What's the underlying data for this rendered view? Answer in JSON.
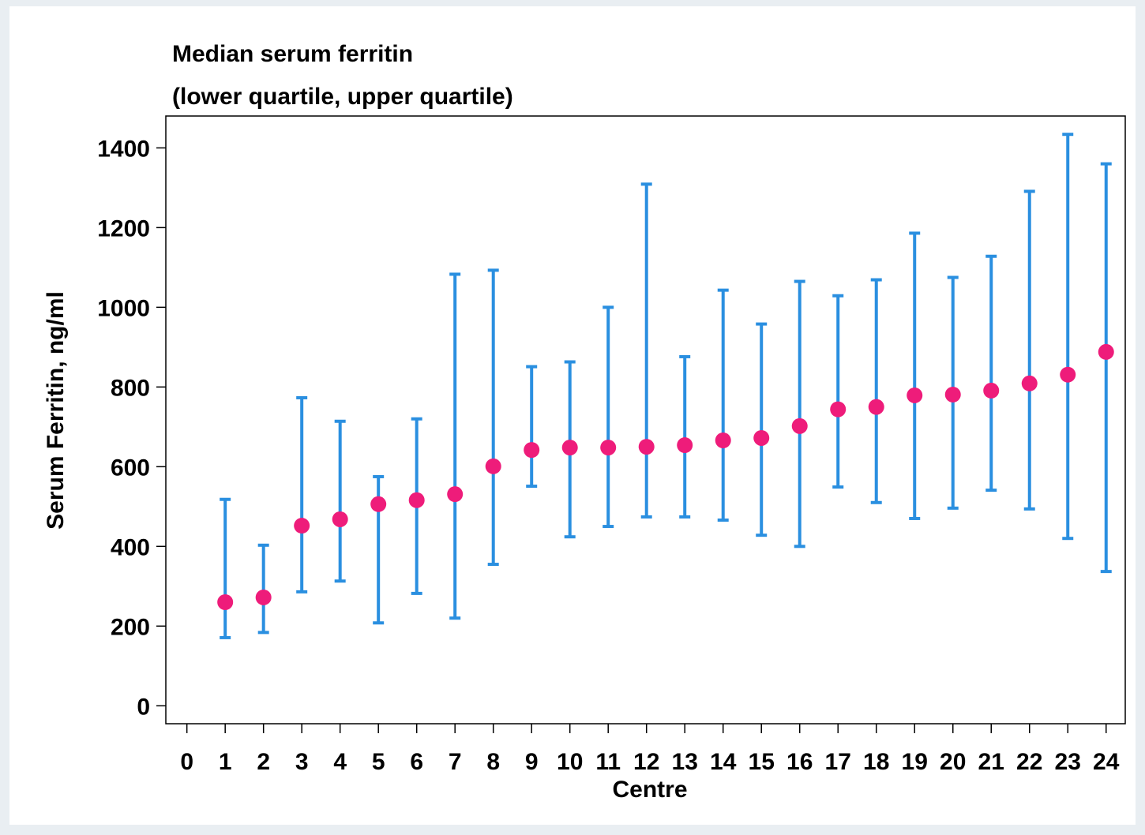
{
  "chart_data": {
    "type": "errorbar",
    "title": "Median serum ferritin",
    "subtitle": "(lower quartile, upper quartile)",
    "x_label": "Centre",
    "y_label": "Serum Ferritin, ng/ml",
    "x": [
      1,
      2,
      3,
      4,
      5,
      6,
      7,
      8,
      9,
      10,
      11,
      12,
      13,
      14,
      15,
      16,
      17,
      18,
      19,
      20,
      21,
      22,
      23,
      24
    ],
    "median": [
      260,
      272,
      452,
      468,
      506,
      516,
      531,
      601,
      642,
      648,
      648,
      650,
      654,
      666,
      672,
      702,
      744,
      750,
      779,
      781,
      791,
      809,
      831,
      888
    ],
    "lower": [
      171,
      184,
      286,
      313,
      208,
      282,
      220,
      355,
      551,
      424,
      450,
      474,
      474,
      466,
      428,
      400,
      549,
      510,
      470,
      496,
      541,
      494,
      420,
      337
    ],
    "upper": [
      518,
      403,
      773,
      714,
      575,
      720,
      1083,
      1093,
      851,
      863,
      1000,
      1309,
      876,
      1043,
      958,
      1065,
      1029,
      1069,
      1186,
      1075,
      1128,
      1291,
      1434,
      1360
    ],
    "median_color": "#ee1c7a",
    "bar_color": "#2a8fe0",
    "xlim": [
      -0.55,
      24.5
    ],
    "ylim": [
      -45,
      1480
    ],
    "xticks": [
      0,
      1,
      2,
      3,
      4,
      5,
      6,
      7,
      8,
      9,
      10,
      11,
      12,
      13,
      14,
      15,
      16,
      17,
      18,
      19,
      20,
      21,
      22,
      23,
      24
    ],
    "yticks": [
      0,
      200,
      400,
      600,
      800,
      1000,
      1200,
      1400
    ]
  }
}
